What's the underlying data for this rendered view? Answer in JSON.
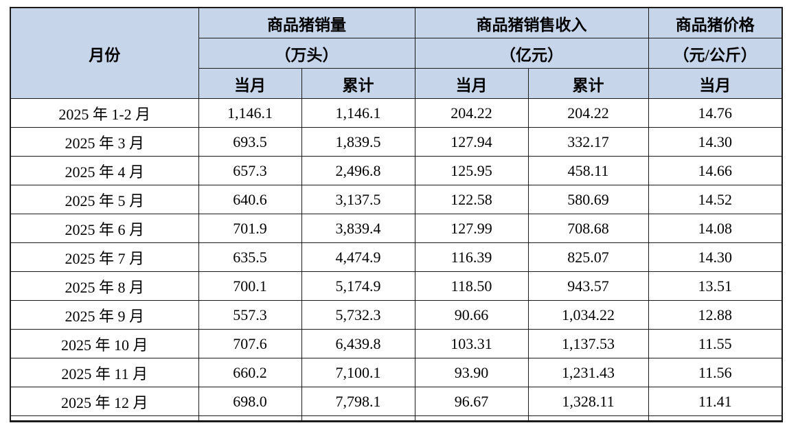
{
  "table": {
    "month_header": "月份",
    "groups": [
      {
        "title": "商品猪销量",
        "unit": "（万头）",
        "sub_current": "当月",
        "sub_cumulative": "累计"
      },
      {
        "title": "商品猪销售收入",
        "unit": "（亿元）",
        "sub_current": "当月",
        "sub_cumulative": "累计"
      },
      {
        "title": "商品猪价格",
        "unit": "（元/公斤）",
        "sub_current": "当月"
      }
    ],
    "rows": [
      {
        "month": "2025 年 1-2 月",
        "values": [
          "1,146.1",
          "1,146.1",
          "204.22",
          "204.22",
          "14.76"
        ]
      },
      {
        "month": "2025 年 3 月",
        "values": [
          "693.5",
          "1,839.5",
          "127.94",
          "332.17",
          "14.30"
        ]
      },
      {
        "month": "2025 年 4 月",
        "values": [
          "657.3",
          "2,496.8",
          "125.95",
          "458.11",
          "14.66"
        ]
      },
      {
        "month": "2025 年 5 月",
        "values": [
          "640.6",
          "3,137.5",
          "122.58",
          "580.69",
          "14.52"
        ]
      },
      {
        "month": "2025 年 6 月",
        "values": [
          "701.9",
          "3,839.4",
          "127.99",
          "708.68",
          "14.08"
        ]
      },
      {
        "month": "2025 年 7 月",
        "values": [
          "635.5",
          "4,474.9",
          "116.39",
          "825.07",
          "14.30"
        ]
      },
      {
        "month": "2025 年 8 月",
        "values": [
          "700.1",
          "5,174.9",
          "118.50",
          "943.57",
          "13.51"
        ]
      },
      {
        "month": "2025 年 9 月",
        "values": [
          "557.3",
          "5,732.3",
          "90.66",
          "1,034.22",
          "12.88"
        ]
      },
      {
        "month": "2025 年 10 月",
        "values": [
          "707.6",
          "6,439.8",
          "103.31",
          "1,137.53",
          "11.55"
        ]
      },
      {
        "month": "2025 年 11 月",
        "values": [
          "660.2",
          "7,100.1",
          "93.90",
          "1,231.43",
          "11.56"
        ]
      },
      {
        "month": "2025 年 12 月",
        "values": [
          "698.0",
          "7,798.1",
          "96.67",
          "1,328.11",
          "11.41"
        ]
      }
    ]
  },
  "colors": {
    "header_bg": "#c6d5ea",
    "border": "#1a1a1a",
    "text": "#000000",
    "page_bg": "#ffffff"
  }
}
